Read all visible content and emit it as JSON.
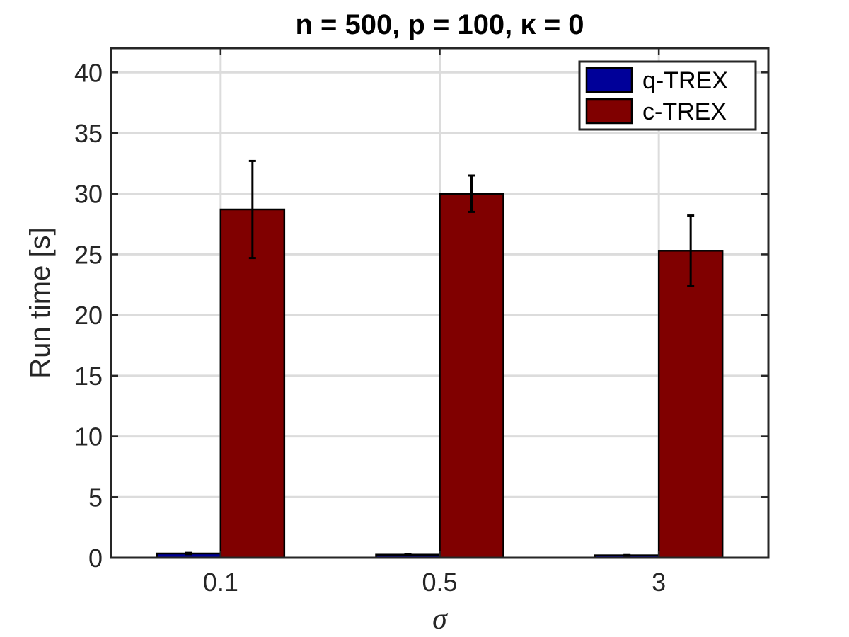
{
  "chart_data": {
    "type": "bar",
    "title": "n = 500, p = 100, κ = 0",
    "xlabel": "σ",
    "ylabel": "Run time [s]",
    "categories": [
      "0.1",
      "0.5",
      "3"
    ],
    "ylim": [
      0,
      42
    ],
    "yticks": [
      0,
      5,
      10,
      15,
      20,
      25,
      30,
      35,
      40
    ],
    "ytick_labels": [
      "0",
      "5",
      "10",
      "15",
      "20",
      "25",
      "30",
      "35",
      "40"
    ],
    "grid": true,
    "legend_position": "top-right",
    "series": [
      {
        "name": "q-TREX",
        "color": "#000099",
        "values": [
          0.35,
          0.25,
          0.2
        ],
        "errors": [
          0.05,
          0.03,
          0.02
        ]
      },
      {
        "name": "c-TREX",
        "color": "#800000",
        "values": [
          28.7,
          30.0,
          25.3
        ],
        "errors": [
          4.0,
          1.5,
          2.9
        ]
      }
    ]
  }
}
